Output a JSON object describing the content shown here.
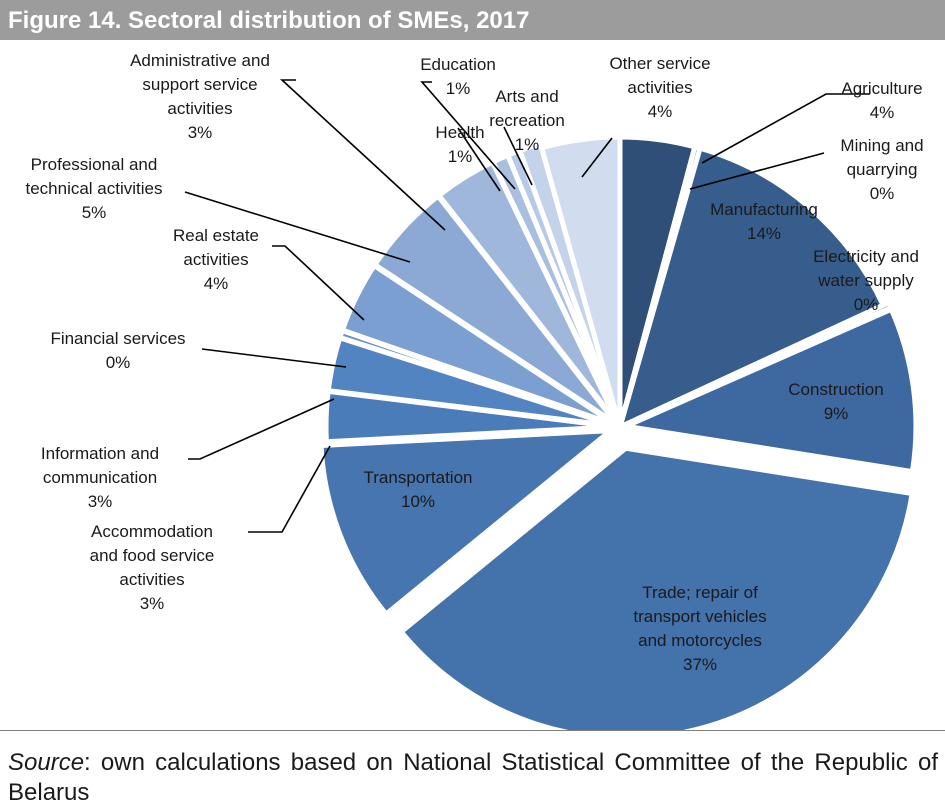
{
  "figure": {
    "title": "Figure 14. Sectoral distribution of SMEs, 2017"
  },
  "source": {
    "label": "Source",
    "text": ":  own calculations based on National Statistical Committee of the Republic of Belarus"
  },
  "chart_data": {
    "type": "pie",
    "title": "Figure 14. Sectoral distribution of SMEs, 2017",
    "slices": [
      {
        "lines": [
          "Agriculture",
          "4%"
        ],
        "value": 4.2,
        "color": "#2f4e78"
      },
      {
        "lines": [
          "Mining and",
          "quarrying",
          "0%"
        ],
        "value": 0.3,
        "color": "#32527e"
      },
      {
        "lines": [
          "Manufacturing",
          "14%"
        ],
        "value": 13.8,
        "color": "#375d8c"
      },
      {
        "lines": [
          "Electricity and",
          "water supply",
          "0%"
        ],
        "value": 0.3,
        "color": "#3b649a"
      },
      {
        "lines": [
          "Construction",
          "9%"
        ],
        "value": 9.2,
        "color": "#3e68a0"
      },
      {
        "lines": [
          "Trade; repair of",
          "transport vehicles",
          "and motorcycles",
          "37%"
        ],
        "value": 37.0,
        "color": "#4472aa"
      },
      {
        "lines": [
          "Transportation",
          "10%"
        ],
        "value": 10.2,
        "color": "#4675b0"
      },
      {
        "lines": [
          "Accommodation",
          "and food service",
          "activities",
          "3%"
        ],
        "value": 2.8,
        "color": "#4b7cba"
      },
      {
        "lines": [
          "Information and",
          "communication",
          "3%"
        ],
        "value": 3.0,
        "color": "#5384c2"
      },
      {
        "lines": [
          "Financial services",
          "0%"
        ],
        "value": 0.4,
        "color": "#6590c8"
      },
      {
        "lines": [
          "Real estate",
          "activities",
          "4%"
        ],
        "value": 4.0,
        "color": "#7b9fd0"
      },
      {
        "lines": [
          "Professional and",
          "technical activities",
          "5%"
        ],
        "value": 5.2,
        "color": "#8ba9d4"
      },
      {
        "lines": [
          "Administrative and",
          "support service",
          "activities",
          "3%"
        ],
        "value": 3.5,
        "color": "#a0b7dc"
      },
      {
        "lines": [
          "Health",
          "1%"
        ],
        "value": 0.9,
        "color": "#a9bfe0"
      },
      {
        "lines": [
          "Education",
          "1%"
        ],
        "value": 0.7,
        "color": "#b6c9e6"
      },
      {
        "lines": [
          "Arts and",
          "recreation",
          "1%"
        ],
        "value": 1.2,
        "color": "#c5d3ea"
      },
      {
        "lines": [
          "Other service",
          "activities",
          "4%"
        ],
        "value": 4.4,
        "color": "#d2dcef"
      }
    ],
    "legend": "none",
    "data_labels": "category name and percentage"
  }
}
